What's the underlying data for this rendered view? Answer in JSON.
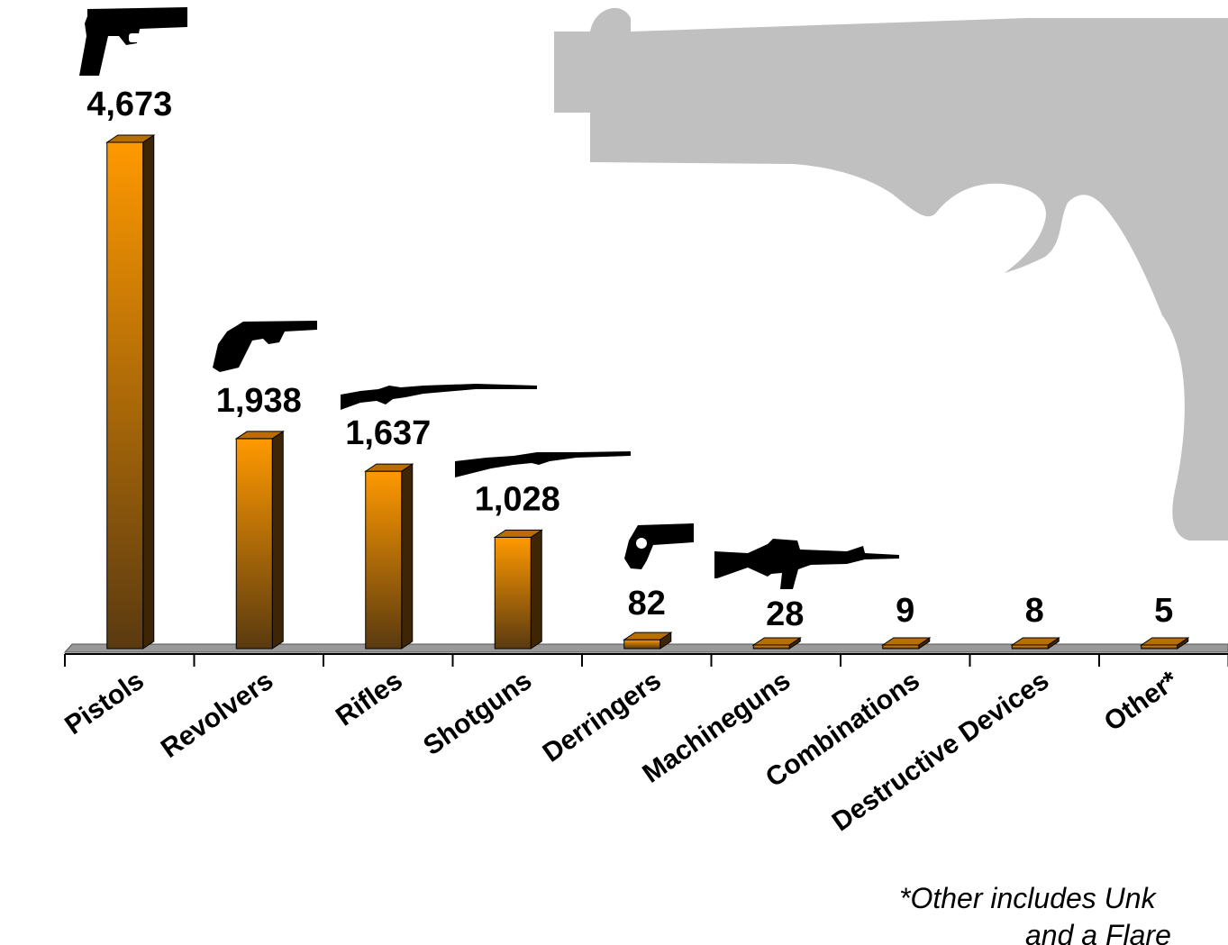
{
  "chart_data": {
    "type": "bar",
    "categories": [
      "Pistols",
      "Revolvers",
      "Rifles",
      "Shotguns",
      "Derringers",
      "Machineguns",
      "Combinations",
      "Destructive Devices",
      "Other*"
    ],
    "values": [
      4673,
      1938,
      1637,
      1028,
      82,
      28,
      9,
      8,
      5
    ],
    "value_labels": [
      "4,673",
      "1,938",
      "1,637",
      "1,028",
      "82",
      "28",
      "9",
      "8",
      "5"
    ],
    "title": "",
    "xlabel": "",
    "ylabel": "",
    "ylim": [
      0,
      4673
    ],
    "grid": false,
    "legend": "none",
    "bar_style": "3d",
    "colors": {
      "bar_top": "#ff9900",
      "bar_bottom": "#5a3a10",
      "bar_side": "#3d2506",
      "floor": "#999999",
      "background_pistol": "#c0c0c0",
      "icons": "#000000"
    },
    "icons": [
      "pistol-icon",
      "revolver-icon",
      "rifle-icon",
      "shotgun-icon",
      "derringer-icon",
      "machinegun-icon"
    ],
    "footnote": [
      "*Other includes Unk",
      "and a Flare"
    ]
  }
}
